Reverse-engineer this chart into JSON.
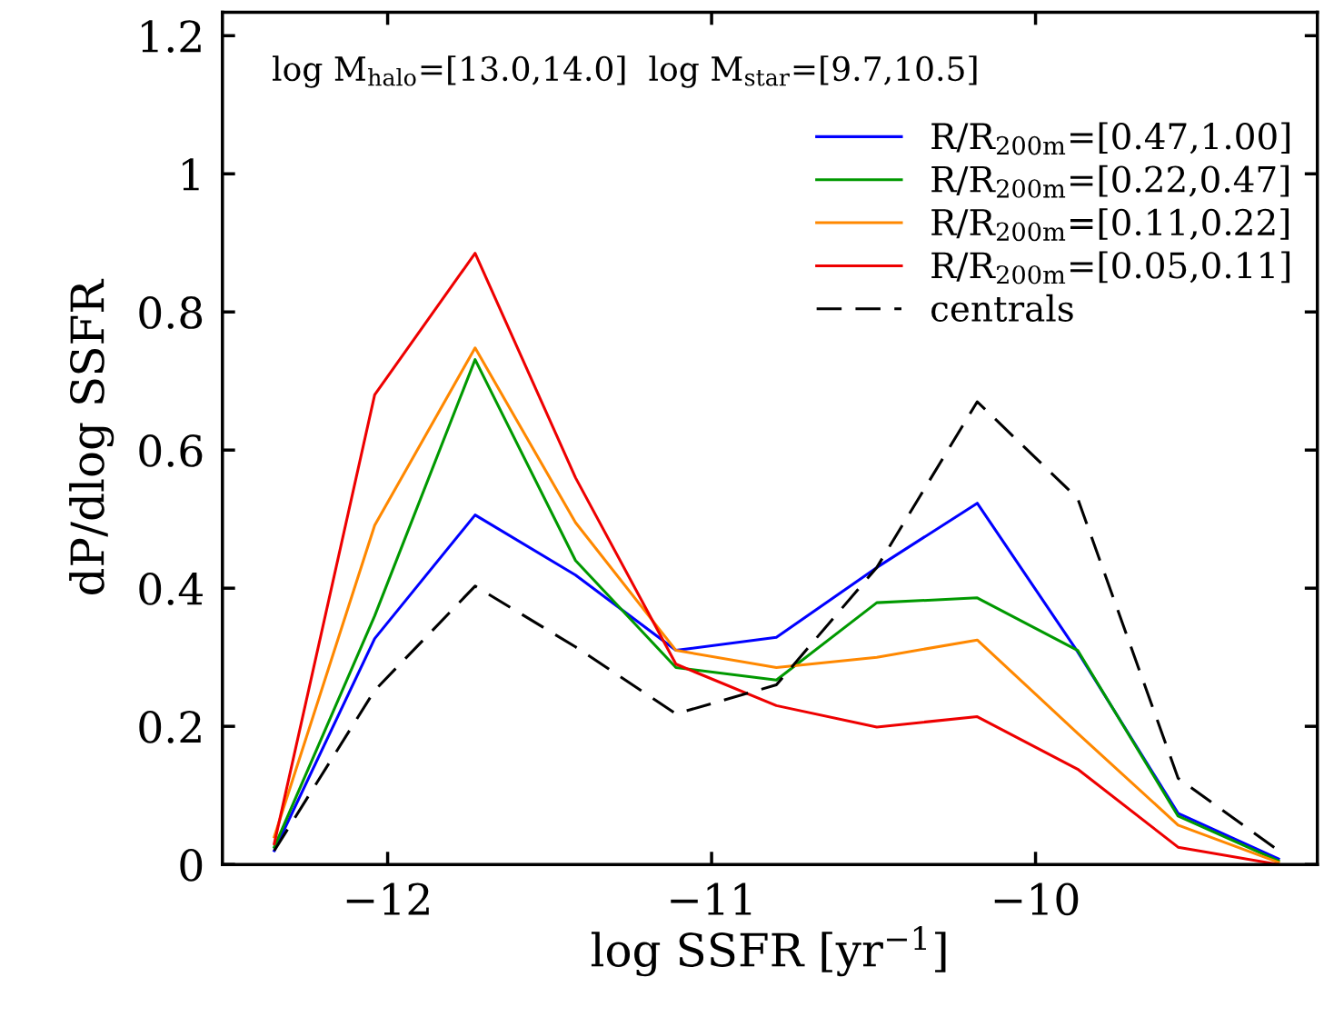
{
  "chart_data": {
    "type": "line",
    "xlabel": "log SSFR [yr$^{−1}$]",
    "ylabel": "dP/dlog SSFR",
    "annotations": [
      "log M$_{halo}$=[13.0,14.0]  log M$_{star}$=[9.7,10.5]"
    ],
    "x": [
      -12.35,
      -12.04,
      -11.73,
      -11.42,
      -11.11,
      -10.8,
      -10.49,
      -10.18,
      -9.87,
      -9.56,
      -9.25
    ],
    "series": [
      {
        "name": "R/R$_{200m}$=[0.47,1.00]",
        "color": "#0000ff",
        "line_style": "solid",
        "values": [
          0.02,
          0.327,
          0.506,
          0.419,
          0.31,
          0.329,
          0.43,
          0.523,
          0.308,
          0.074,
          0.008
        ]
      },
      {
        "name": "R/R$_{200m}$=[0.22,0.47]",
        "color": "#009900",
        "line_style": "solid",
        "values": [
          0.025,
          0.36,
          0.731,
          0.44,
          0.285,
          0.267,
          0.379,
          0.386,
          0.31,
          0.07,
          0.005
        ]
      },
      {
        "name": "R/R$_{200m}$=[0.11,0.22]",
        "color": "#ff8800",
        "line_style": "solid",
        "values": [
          0.04,
          0.491,
          0.748,
          0.495,
          0.31,
          0.285,
          0.3,
          0.325,
          0.19,
          0.057,
          0.003
        ]
      },
      {
        "name": "R/R$_{200m}$=[0.05,0.11]",
        "color": "#ee0000",
        "line_style": "solid",
        "values": [
          0.03,
          0.68,
          0.885,
          0.56,
          0.29,
          0.23,
          0.199,
          0.214,
          0.138,
          0.025,
          0.0
        ]
      },
      {
        "name": "centrals",
        "color": "#000000",
        "line_style": "dashed",
        "values": [
          0.02,
          0.252,
          0.403,
          0.315,
          0.218,
          0.26,
          0.43,
          0.67,
          0.53,
          0.125,
          0.02
        ]
      }
    ],
    "xlim": [
      -12.51,
      -9.13
    ],
    "ylim": [
      0,
      1.234
    ],
    "xticks": [
      {
        "value": -12,
        "label": "−12"
      },
      {
        "value": -11,
        "label": "−11"
      },
      {
        "value": -10,
        "label": "−10"
      }
    ],
    "yticks": [
      0,
      0.2,
      0.4,
      0.6,
      0.8,
      1,
      1.2
    ],
    "grid": false,
    "legend": "top right",
    "marker": "none"
  }
}
